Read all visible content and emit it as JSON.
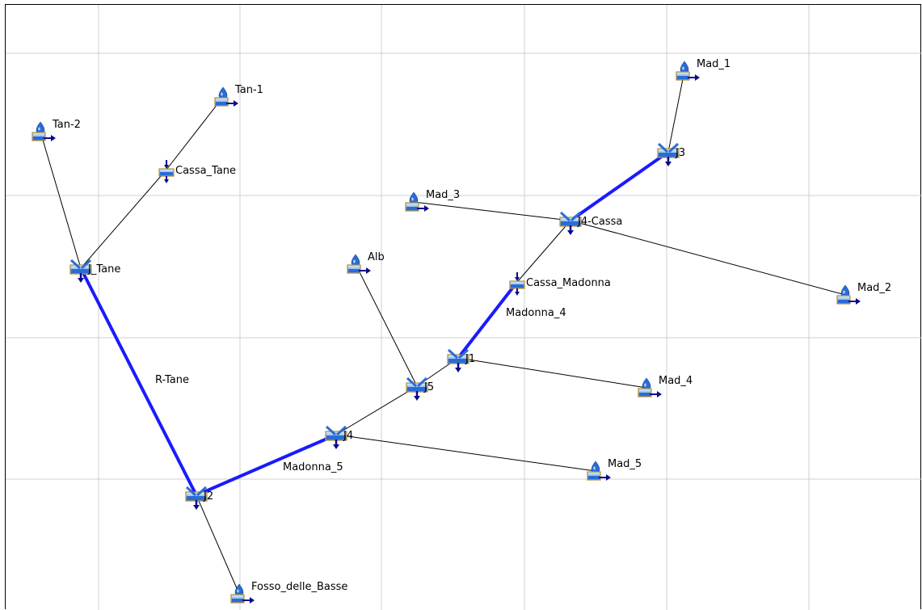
{
  "colors": {
    "grid": "#cfcfcf",
    "thin_link": "#000000",
    "reach": "#1a1aff",
    "icon_blue": "#2a6cd6",
    "icon_light": "#9fd4f5",
    "icon_frame": "#b08a3a",
    "arrow": "#0a0a8a"
  },
  "nodes": [
    {
      "id": "tan1",
      "label": "Tan-1",
      "type": "source-icon"
    },
    {
      "id": "tan2",
      "label": "Tan-2",
      "type": "source-icon"
    },
    {
      "id": "cassa_tane",
      "label": "Cassa_Tane",
      "type": "reservoir-icon"
    },
    {
      "id": "j_tane",
      "label": "J_Tane",
      "type": "junction-icon"
    },
    {
      "id": "mad1",
      "label": "Mad_1",
      "type": "source-icon"
    },
    {
      "id": "j3",
      "label": "J3",
      "type": "junction-icon"
    },
    {
      "id": "mad3",
      "label": "Mad_3",
      "type": "source-icon"
    },
    {
      "id": "j4cassa",
      "label": "J4-Cassa",
      "type": "junction-icon"
    },
    {
      "id": "mad2",
      "label": "Mad_2",
      "type": "source-icon"
    },
    {
      "id": "alb",
      "label": "Alb",
      "type": "source-icon"
    },
    {
      "id": "cassa_madonna",
      "label": "Cassa_Madonna",
      "type": "reservoir-icon"
    },
    {
      "id": "j1",
      "label": "J1",
      "type": "junction-icon"
    },
    {
      "id": "mad4",
      "label": "Mad_4",
      "type": "source-icon"
    },
    {
      "id": "j5",
      "label": "J5",
      "type": "junction-icon"
    },
    {
      "id": "j4",
      "label": "J4",
      "type": "junction-icon"
    },
    {
      "id": "mad5",
      "label": "Mad_5",
      "type": "source-icon"
    },
    {
      "id": "j2",
      "label": "J2",
      "type": "junction-icon"
    },
    {
      "id": "fosso",
      "label": "Fosso_delle_Basse",
      "type": "source-icon"
    }
  ],
  "links": [
    {
      "from": "tan1",
      "to": "cassa_tane",
      "kind": "thin"
    },
    {
      "from": "cassa_tane",
      "to": "j_tane",
      "kind": "thin"
    },
    {
      "from": "tan2",
      "to": "j_tane",
      "kind": "thin"
    },
    {
      "from": "j_tane",
      "to": "j2",
      "kind": "reach",
      "label": "R-Tane"
    },
    {
      "from": "j2",
      "to": "j4",
      "kind": "reach",
      "label": "Madonna_5"
    },
    {
      "from": "j2",
      "to": "fosso",
      "kind": "thin"
    },
    {
      "from": "j4",
      "to": "mad5",
      "kind": "thin"
    },
    {
      "from": "j4",
      "to": "j5",
      "kind": "thin"
    },
    {
      "from": "alb",
      "to": "j5",
      "kind": "thin"
    },
    {
      "from": "j5",
      "to": "j1",
      "kind": "thin"
    },
    {
      "from": "j1",
      "to": "mad4",
      "kind": "thin"
    },
    {
      "from": "j1",
      "to": "cassa_madonna",
      "kind": "reach",
      "label": "Madonna_4"
    },
    {
      "from": "cassa_madonna",
      "to": "j4cassa",
      "kind": "thin"
    },
    {
      "from": "mad3",
      "to": "j4cassa",
      "kind": "thin"
    },
    {
      "from": "j4cassa",
      "to": "mad2",
      "kind": "thin"
    },
    {
      "from": "j4cassa",
      "to": "j3",
      "kind": "reach"
    },
    {
      "from": "j3",
      "to": "mad1",
      "kind": "thin"
    }
  ]
}
